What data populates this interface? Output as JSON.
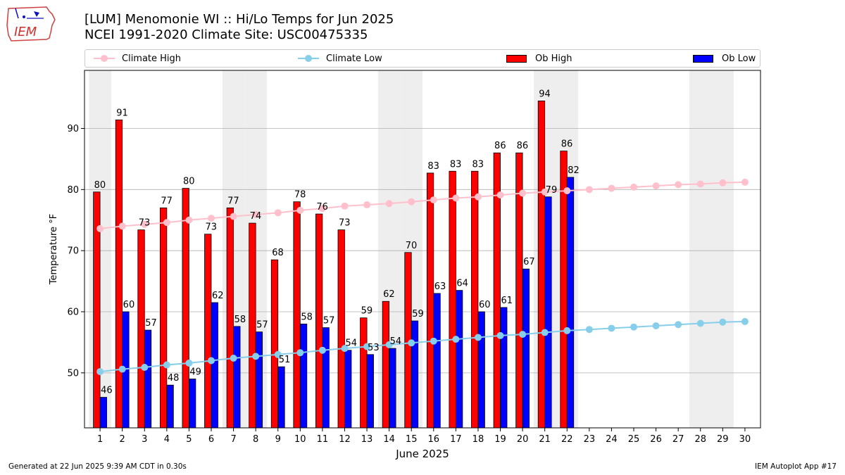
{
  "title": {
    "line1": "[LUM] Menomonie  WI :: Hi/Lo Temps for Jun 2025",
    "line2": "NCEI 1991-2020 Climate Site: USC00475335"
  },
  "logo": {
    "text": "IEM",
    "icon": "iowa-state-outline-logo"
  },
  "footer": {
    "left": "Generated at 22 Jun 2025 9:39 AM CDT in 0.30s",
    "right": "IEM Autoplot App #17"
  },
  "colors": {
    "ob_high": "#ff0000",
    "ob_low": "#0000ff",
    "climate_high": "#ffc0cb",
    "climate_low": "#87ceeb",
    "weekend_shade": "#eeeeee",
    "grid": "#b0b0b0"
  },
  "legend": {
    "placement": "top, above plot",
    "items": [
      {
        "label": "Climate High",
        "kind": "line"
      },
      {
        "label": "Climate Low",
        "kind": "line"
      },
      {
        "label": "Ob High",
        "kind": "bar"
      },
      {
        "label": "Ob Low",
        "kind": "bar"
      }
    ]
  },
  "chart_data": {
    "type": "bar",
    "xlabel": "June 2025",
    "ylabel": "Temperature °F",
    "ylim": [
      41,
      99.5
    ],
    "yticks": [
      50,
      60,
      70,
      80,
      90
    ],
    "grid": "horizontal",
    "categories": [
      "1",
      "2",
      "3",
      "4",
      "5",
      "6",
      "7",
      "8",
      "9",
      "10",
      "11",
      "12",
      "13",
      "14",
      "15",
      "16",
      "17",
      "18",
      "19",
      "20",
      "21",
      "22",
      "23",
      "24",
      "25",
      "26",
      "27",
      "28",
      "29",
      "30"
    ],
    "weekend_days": [
      1,
      7,
      8,
      14,
      15,
      21,
      22,
      28,
      29
    ],
    "series": [
      {
        "name": "Ob High",
        "kind": "bar",
        "values": [
          79.6,
          91.4,
          73.4,
          77.0,
          80.2,
          72.7,
          77.0,
          74.5,
          68.5,
          78.0,
          76.0,
          73.4,
          59.0,
          61.7,
          69.7,
          82.7,
          83.0,
          83.0,
          86.0,
          86.0,
          94.5,
          86.3,
          null,
          null,
          null,
          null,
          null,
          null,
          null,
          null
        ],
        "labels": [
          "80",
          "91",
          "73",
          "77",
          "80",
          "73",
          "77",
          "74",
          "68",
          "78",
          "76",
          "73",
          "59",
          "62",
          "70",
          "83",
          "83",
          "83",
          "86",
          "86",
          "94",
          "86",
          "",
          "",
          "",
          "",
          "",
          "",
          "",
          ""
        ]
      },
      {
        "name": "Ob Low",
        "kind": "bar",
        "values": [
          46.0,
          60.0,
          57.0,
          48.0,
          49.0,
          61.5,
          57.6,
          56.7,
          51.0,
          58.0,
          57.4,
          53.7,
          53.0,
          54.0,
          58.5,
          63.0,
          63.5,
          60.0,
          60.7,
          67.0,
          78.8,
          82.0,
          null,
          null,
          null,
          null,
          null,
          null,
          null,
          null
        ],
        "labels": [
          "46",
          "60",
          "57",
          "48",
          "49",
          "62",
          "58",
          "57",
          "51",
          "58",
          "57",
          "54",
          "53",
          "54",
          "59",
          "63",
          "64",
          "60",
          "61",
          "67",
          "79",
          "82",
          "",
          "",
          "",
          "",
          "",
          "",
          "",
          ""
        ]
      },
      {
        "name": "Climate High",
        "kind": "line",
        "values": [
          73.6,
          74.0,
          74.3,
          74.6,
          75.0,
          75.3,
          75.6,
          75.9,
          76.2,
          76.6,
          76.9,
          77.3,
          77.5,
          77.7,
          78.0,
          78.3,
          78.6,
          78.8,
          79.1,
          79.4,
          79.6,
          79.8,
          80.0,
          80.2,
          80.4,
          80.6,
          80.8,
          80.9,
          81.1,
          81.2
        ]
      },
      {
        "name": "Climate Low",
        "kind": "line",
        "values": [
          50.2,
          50.6,
          50.9,
          51.3,
          51.6,
          52.0,
          52.4,
          52.7,
          53.0,
          53.3,
          53.7,
          54.0,
          54.3,
          54.6,
          54.9,
          55.2,
          55.5,
          55.8,
          56.1,
          56.3,
          56.6,
          56.9,
          57.1,
          57.3,
          57.5,
          57.7,
          57.9,
          58.1,
          58.3,
          58.4
        ]
      }
    ]
  }
}
